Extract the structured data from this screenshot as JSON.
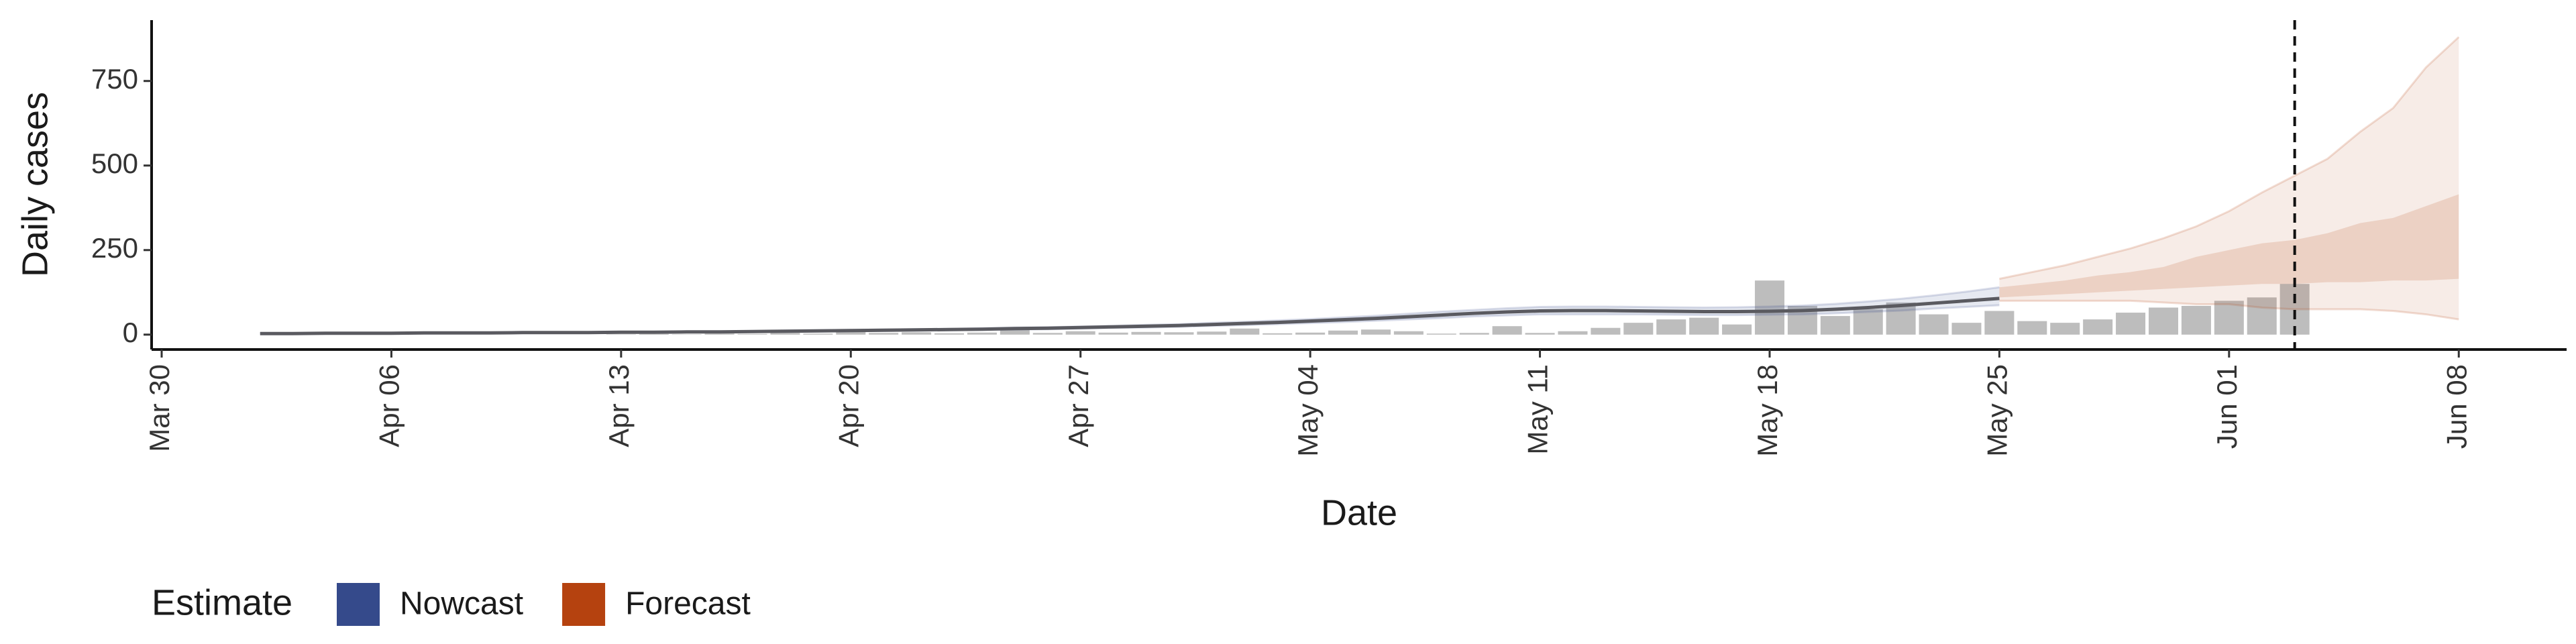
{
  "chart_data": {
    "type": "nowcast",
    "x_label": "Date",
    "y_label": "Daily cases",
    "legend_title": "Estimate",
    "x": [
      "Apr 02",
      "Apr 03",
      "Apr 04",
      "Apr 05",
      "Apr 06",
      "Apr 07",
      "Apr 08",
      "Apr 09",
      "Apr 10",
      "Apr 11",
      "Apr 12",
      "Apr 13",
      "Apr 14",
      "Apr 15",
      "Apr 16",
      "Apr 17",
      "Apr 18",
      "Apr 19",
      "Apr 20",
      "Apr 21",
      "Apr 22",
      "Apr 23",
      "Apr 24",
      "Apr 25",
      "Apr 26",
      "Apr 27",
      "Apr 28",
      "Apr 29",
      "Apr 30",
      "May 01",
      "May 02",
      "May 03",
      "May 04",
      "May 05",
      "May 06",
      "May 07",
      "May 08",
      "May 09",
      "May 10",
      "May 11",
      "May 12",
      "May 13",
      "May 14",
      "May 15",
      "May 16",
      "May 17",
      "May 18",
      "May 19",
      "May 20",
      "May 21",
      "May 22",
      "May 23",
      "May 24",
      "May 25",
      "May 26",
      "May 27",
      "May 28",
      "May 29",
      "May 30",
      "May 31",
      "Jun 01",
      "Jun 02",
      "Jun 03",
      "Jun 04",
      "Jun 05",
      "Jun 06",
      "Jun 07",
      "Jun 08"
    ],
    "bars": {
      "color": "#bdbdbd",
      "values": [
        null,
        null,
        null,
        null,
        null,
        null,
        null,
        null,
        null,
        null,
        null,
        1,
        2,
        1,
        3,
        2,
        5,
        3,
        8,
        5,
        7,
        4,
        6,
        15,
        5,
        10,
        6,
        8,
        7,
        9,
        18,
        4,
        6,
        12,
        15,
        10,
        3,
        5,
        25,
        5,
        10,
        20,
        35,
        45,
        50,
        30,
        160,
        85,
        55,
        75,
        95,
        60,
        35,
        70,
        40,
        35,
        45,
        65,
        80,
        85,
        100,
        110,
        150,
        null,
        null,
        null,
        null,
        null
      ]
    },
    "series": [
      {
        "name": "Nowcast",
        "color": "#354a8b",
        "line_color": "#5a5a60",
        "values": [
          3,
          3,
          4,
          4,
          4,
          5,
          5,
          5,
          6,
          6,
          6,
          7,
          7,
          8,
          8,
          9,
          10,
          11,
          12,
          13,
          14,
          15,
          16,
          18,
          19,
          21,
          23,
          25,
          27,
          30,
          33,
          36,
          40,
          44,
          48,
          53,
          58,
          63,
          67,
          70,
          71,
          71,
          70,
          69,
          68,
          68,
          69,
          71,
          75,
          80,
          86,
          93,
          100,
          107,
          null,
          null,
          null,
          null,
          null,
          null,
          null,
          null,
          null,
          null,
          null,
          null,
          null,
          null
        ],
        "lower": [
          3,
          3,
          3,
          3,
          3,
          4,
          4,
          4,
          5,
          5,
          5,
          6,
          6,
          7,
          7,
          8,
          8,
          9,
          10,
          11,
          12,
          13,
          14,
          15,
          16,
          18,
          20,
          21,
          23,
          26,
          28,
          31,
          34,
          37,
          41,
          45,
          49,
          54,
          57,
          60,
          60,
          60,
          60,
          59,
          58,
          58,
          59,
          60,
          63,
          67,
          71,
          77,
          82,
          87,
          null,
          null,
          null,
          null,
          null,
          null,
          null,
          null,
          null,
          null,
          null,
          null,
          null,
          null
        ],
        "upper": [
          4,
          4,
          5,
          5,
          5,
          6,
          6,
          6,
          7,
          7,
          7,
          8,
          8,
          9,
          9,
          10,
          12,
          13,
          14,
          15,
          16,
          17,
          19,
          21,
          22,
          24,
          26,
          29,
          31,
          35,
          38,
          42,
          46,
          51,
          56,
          62,
          68,
          73,
          78,
          82,
          83,
          83,
          82,
          81,
          80,
          81,
          83,
          86,
          91,
          98,
          106,
          116,
          127,
          140,
          null,
          null,
          null,
          null,
          null,
          null,
          null,
          null,
          null,
          null,
          null,
          null,
          null,
          null
        ]
      },
      {
        "name": "Forecast",
        "color": "#b5420f",
        "lower": [
          null,
          null,
          null,
          null,
          null,
          null,
          null,
          null,
          null,
          null,
          null,
          null,
          null,
          null,
          null,
          null,
          null,
          null,
          null,
          null,
          null,
          null,
          null,
          null,
          null,
          null,
          null,
          null,
          null,
          null,
          null,
          null,
          null,
          null,
          null,
          null,
          null,
          null,
          null,
          null,
          null,
          null,
          null,
          null,
          null,
          null,
          null,
          null,
          null,
          null,
          null,
          null,
          null,
          100,
          100,
          100,
          100,
          100,
          95,
          90,
          90,
          80,
          75,
          75,
          75,
          70,
          60,
          45
        ],
        "upper": [
          null,
          null,
          null,
          null,
          null,
          null,
          null,
          null,
          null,
          null,
          null,
          null,
          null,
          null,
          null,
          null,
          null,
          null,
          null,
          null,
          null,
          null,
          null,
          null,
          null,
          null,
          null,
          null,
          null,
          null,
          null,
          null,
          null,
          null,
          null,
          null,
          null,
          null,
          null,
          null,
          null,
          null,
          null,
          null,
          null,
          null,
          null,
          null,
          null,
          null,
          null,
          null,
          null,
          165,
          185,
          205,
          230,
          255,
          285,
          320,
          365,
          420,
          470,
          520,
          600,
          670,
          790,
          880
        ],
        "lower50": [
          null,
          null,
          null,
          null,
          null,
          null,
          null,
          null,
          null,
          null,
          null,
          null,
          null,
          null,
          null,
          null,
          null,
          null,
          null,
          null,
          null,
          null,
          null,
          null,
          null,
          null,
          null,
          null,
          null,
          null,
          null,
          null,
          null,
          null,
          null,
          null,
          null,
          null,
          null,
          null,
          null,
          null,
          null,
          null,
          null,
          null,
          null,
          null,
          null,
          null,
          null,
          null,
          null,
          110,
          115,
          120,
          125,
          130,
          135,
          140,
          145,
          150,
          150,
          155,
          155,
          160,
          160,
          165
        ],
        "upper50": [
          null,
          null,
          null,
          null,
          null,
          null,
          null,
          null,
          null,
          null,
          null,
          null,
          null,
          null,
          null,
          null,
          null,
          null,
          null,
          null,
          null,
          null,
          null,
          null,
          null,
          null,
          null,
          null,
          null,
          null,
          null,
          null,
          null,
          null,
          null,
          null,
          null,
          null,
          null,
          null,
          null,
          null,
          null,
          null,
          null,
          null,
          null,
          null,
          null,
          null,
          null,
          null,
          null,
          140,
          150,
          160,
          175,
          185,
          200,
          230,
          250,
          270,
          280,
          300,
          330,
          345,
          380,
          415
        ]
      }
    ],
    "vline_x": "Jun 03",
    "xlim": [
      "Mar 30",
      "Jun 11"
    ],
    "xticks": [
      "Mar 30",
      "Apr 06",
      "Apr 13",
      "Apr 20",
      "Apr 27",
      "May 04",
      "May 11",
      "May 18",
      "May 25",
      "Jun 01",
      "Jun 08"
    ],
    "ylim": [
      -44,
      930
    ],
    "yticks": [
      0,
      250,
      500,
      750
    ]
  }
}
